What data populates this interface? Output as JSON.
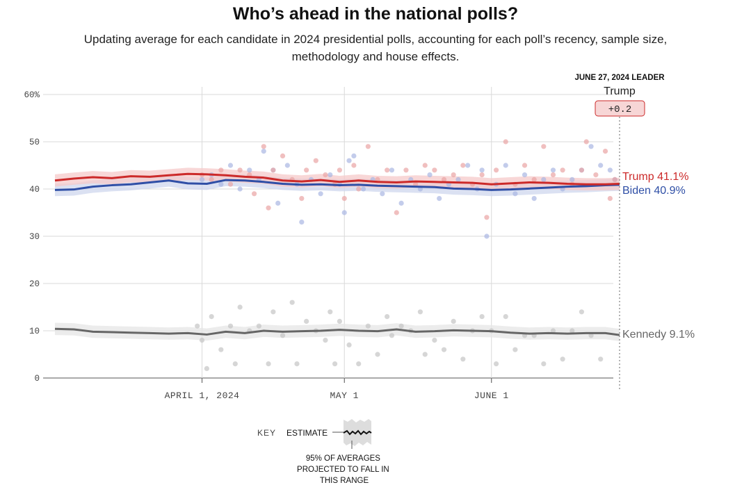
{
  "header": {
    "title": "Who’s ahead in the national polls?",
    "subtitle": "Updating average for each candidate in 2024 presidential polls, accounting for each poll’s recency, sample size, methodology and house effects."
  },
  "leader": {
    "label": "JUNE 27, 2024 LEADER",
    "name": "Trump",
    "margin": "+0.2"
  },
  "colors": {
    "trump": "#cc2a2a",
    "biden": "#2f4fa6",
    "kennedy": "#666666"
  },
  "key": {
    "label": "KEY",
    "estimate": "ESTIMATE",
    "range_note": "95% OF AVERAGES PROJECTED TO FALL IN THIS RANGE"
  },
  "chart_data": {
    "type": "line",
    "title": "Who’s ahead in the national polls?",
    "y_range": [
      0,
      60
    ],
    "y_ticks": [
      "60%",
      "50",
      "40",
      "30",
      "20",
      "10",
      "0"
    ],
    "y_tick_values": [
      60,
      50,
      40,
      30,
      20,
      10,
      0
    ],
    "x_range_days": [
      0,
      119
    ],
    "x_ticks": [
      {
        "label": "APRIL 1, 2024",
        "day": 31
      },
      {
        "label": "MAY 1",
        "day": 61
      },
      {
        "label": "JUNE 1",
        "day": 92
      }
    ],
    "end_labels": [
      {
        "series": "Trump",
        "text": "Trump 41.1%"
      },
      {
        "series": "Biden",
        "text": "Biden 40.9%"
      },
      {
        "series": "Kennedy",
        "text": "Kennedy 9.1%"
      }
    ],
    "series": [
      {
        "name": "Trump",
        "band": 1.3,
        "days": [
          0,
          4,
          8,
          12,
          16,
          20,
          24,
          28,
          32,
          36,
          40,
          44,
          48,
          52,
          56,
          60,
          64,
          68,
          72,
          76,
          80,
          84,
          88,
          92,
          96,
          100,
          104,
          108,
          112,
          116,
          119
        ],
        "values": [
          41.8,
          42.2,
          42.5,
          42.3,
          42.7,
          42.6,
          42.9,
          43.2,
          43.1,
          42.9,
          42.6,
          42.4,
          41.8,
          41.6,
          41.9,
          41.5,
          41.8,
          41.5,
          41.4,
          41.6,
          41.5,
          41.4,
          41.3,
          41.0,
          41.2,
          41.4,
          41.3,
          41.1,
          41.0,
          41.0,
          41.1
        ],
        "polls": [
          {
            "day": 31,
            "value": 43
          },
          {
            "day": 33,
            "value": 42
          },
          {
            "day": 35,
            "value": 44
          },
          {
            "day": 37,
            "value": 41
          },
          {
            "day": 39,
            "value": 44
          },
          {
            "day": 41,
            "value": 43
          },
          {
            "day": 42,
            "value": 39
          },
          {
            "day": 44,
            "value": 49
          },
          {
            "day": 45,
            "value": 36
          },
          {
            "day": 46,
            "value": 44
          },
          {
            "day": 48,
            "value": 47
          },
          {
            "day": 50,
            "value": 42
          },
          {
            "day": 52,
            "value": 38
          },
          {
            "day": 53,
            "value": 44
          },
          {
            "day": 55,
            "value": 46
          },
          {
            "day": 57,
            "value": 43
          },
          {
            "day": 59,
            "value": 41
          },
          {
            "day": 60,
            "value": 44
          },
          {
            "day": 61,
            "value": 38
          },
          {
            "day": 63,
            "value": 45
          },
          {
            "day": 64,
            "value": 40
          },
          {
            "day": 66,
            "value": 49
          },
          {
            "day": 68,
            "value": 42
          },
          {
            "day": 70,
            "value": 44
          },
          {
            "day": 72,
            "value": 35
          },
          {
            "day": 74,
            "value": 44
          },
          {
            "day": 76,
            "value": 41
          },
          {
            "day": 78,
            "value": 45
          },
          {
            "day": 80,
            "value": 44
          },
          {
            "day": 82,
            "value": 42
          },
          {
            "day": 84,
            "value": 43
          },
          {
            "day": 86,
            "value": 45
          },
          {
            "day": 88,
            "value": 41
          },
          {
            "day": 90,
            "value": 43
          },
          {
            "day": 91,
            "value": 34
          },
          {
            "day": 93,
            "value": 44
          },
          {
            "day": 95,
            "value": 50
          },
          {
            "day": 97,
            "value": 41
          },
          {
            "day": 99,
            "value": 45
          },
          {
            "day": 101,
            "value": 42
          },
          {
            "day": 103,
            "value": 49
          },
          {
            "day": 105,
            "value": 43
          },
          {
            "day": 107,
            "value": 44
          },
          {
            "day": 109,
            "value": 41
          },
          {
            "day": 111,
            "value": 44
          },
          {
            "day": 112,
            "value": 50
          },
          {
            "day": 114,
            "value": 43
          },
          {
            "day": 116,
            "value": 48
          },
          {
            "day": 117,
            "value": 38
          },
          {
            "day": 118,
            "value": 42
          }
        ]
      },
      {
        "name": "Biden",
        "band": 1.3,
        "days": [
          0,
          4,
          8,
          12,
          16,
          20,
          24,
          28,
          32,
          36,
          40,
          44,
          48,
          52,
          56,
          60,
          64,
          68,
          72,
          76,
          80,
          84,
          88,
          92,
          96,
          100,
          104,
          108,
          112,
          116,
          119
        ],
        "values": [
          39.8,
          39.9,
          40.5,
          40.8,
          41.0,
          41.4,
          41.8,
          41.2,
          41.1,
          41.9,
          41.8,
          41.5,
          41.1,
          40.9,
          41.0,
          40.8,
          40.9,
          40.7,
          40.6,
          40.5,
          40.4,
          40.1,
          40.0,
          39.8,
          39.9,
          40.1,
          40.3,
          40.5,
          40.6,
          40.8,
          40.9
        ],
        "polls": [
          {
            "day": 31,
            "value": 42
          },
          {
            "day": 33,
            "value": 43
          },
          {
            "day": 35,
            "value": 41
          },
          {
            "day": 37,
            "value": 45
          },
          {
            "day": 39,
            "value": 40
          },
          {
            "day": 41,
            "value": 44
          },
          {
            "day": 43,
            "value": 42
          },
          {
            "day": 44,
            "value": 48
          },
          {
            "day": 46,
            "value": 44
          },
          {
            "day": 47,
            "value": 37
          },
          {
            "day": 49,
            "value": 45
          },
          {
            "day": 51,
            "value": 41
          },
          {
            "day": 52,
            "value": 33
          },
          {
            "day": 54,
            "value": 42
          },
          {
            "day": 56,
            "value": 39
          },
          {
            "day": 58,
            "value": 43
          },
          {
            "day": 60,
            "value": 41
          },
          {
            "day": 61,
            "value": 35
          },
          {
            "day": 62,
            "value": 46
          },
          {
            "day": 63,
            "value": 47
          },
          {
            "day": 65,
            "value": 40
          },
          {
            "day": 67,
            "value": 42
          },
          {
            "day": 69,
            "value": 39
          },
          {
            "day": 71,
            "value": 44
          },
          {
            "day": 73,
            "value": 37
          },
          {
            "day": 75,
            "value": 42
          },
          {
            "day": 77,
            "value": 40
          },
          {
            "day": 79,
            "value": 43
          },
          {
            "day": 81,
            "value": 38
          },
          {
            "day": 83,
            "value": 41
          },
          {
            "day": 85,
            "value": 42
          },
          {
            "day": 87,
            "value": 45
          },
          {
            "day": 89,
            "value": 40
          },
          {
            "day": 90,
            "value": 44
          },
          {
            "day": 91,
            "value": 30
          },
          {
            "day": 93,
            "value": 41
          },
          {
            "day": 95,
            "value": 45
          },
          {
            "day": 97,
            "value": 39
          },
          {
            "day": 99,
            "value": 43
          },
          {
            "day": 101,
            "value": 38
          },
          {
            "day": 103,
            "value": 42
          },
          {
            "day": 105,
            "value": 44
          },
          {
            "day": 107,
            "value": 40
          },
          {
            "day": 109,
            "value": 42
          },
          {
            "day": 111,
            "value": 44
          },
          {
            "day": 113,
            "value": 49
          },
          {
            "day": 115,
            "value": 45
          },
          {
            "day": 117,
            "value": 44
          },
          {
            "day": 118,
            "value": 42
          }
        ]
      },
      {
        "name": "Kennedy",
        "band": 1.3,
        "days": [
          0,
          4,
          8,
          12,
          16,
          20,
          24,
          28,
          32,
          36,
          40,
          44,
          48,
          52,
          56,
          60,
          64,
          68,
          72,
          76,
          80,
          84,
          88,
          92,
          96,
          100,
          104,
          108,
          112,
          116,
          119
        ],
        "values": [
          10.4,
          10.3,
          9.8,
          9.7,
          9.6,
          9.5,
          9.4,
          9.5,
          9.2,
          9.8,
          9.5,
          10.0,
          9.8,
          9.9,
          10.0,
          10.2,
          10.0,
          9.9,
          10.3,
          9.8,
          9.9,
          10.1,
          10.0,
          9.9,
          9.6,
          9.4,
          9.5,
          9.4,
          9.5,
          9.5,
          9.1
        ],
        "polls": [
          {
            "day": 30,
            "value": 11
          },
          {
            "day": 31,
            "value": 8
          },
          {
            "day": 32,
            "value": 2
          },
          {
            "day": 33,
            "value": 13
          },
          {
            "day": 35,
            "value": 6
          },
          {
            "day": 37,
            "value": 11
          },
          {
            "day": 38,
            "value": 3
          },
          {
            "day": 39,
            "value": 15
          },
          {
            "day": 41,
            "value": 10
          },
          {
            "day": 43,
            "value": 11
          },
          {
            "day": 45,
            "value": 3
          },
          {
            "day": 46,
            "value": 14
          },
          {
            "day": 48,
            "value": 9
          },
          {
            "day": 50,
            "value": 16
          },
          {
            "day": 51,
            "value": 3
          },
          {
            "day": 53,
            "value": 12
          },
          {
            "day": 55,
            "value": 10
          },
          {
            "day": 57,
            "value": 8
          },
          {
            "day": 58,
            "value": 14
          },
          {
            "day": 59,
            "value": 3
          },
          {
            "day": 60,
            "value": 12
          },
          {
            "day": 62,
            "value": 7
          },
          {
            "day": 64,
            "value": 3
          },
          {
            "day": 66,
            "value": 11
          },
          {
            "day": 68,
            "value": 5
          },
          {
            "day": 70,
            "value": 13
          },
          {
            "day": 71,
            "value": 9
          },
          {
            "day": 73,
            "value": 11
          },
          {
            "day": 75,
            "value": 10
          },
          {
            "day": 77,
            "value": 14
          },
          {
            "day": 78,
            "value": 5
          },
          {
            "day": 80,
            "value": 8
          },
          {
            "day": 82,
            "value": 6
          },
          {
            "day": 84,
            "value": 12
          },
          {
            "day": 86,
            "value": 4
          },
          {
            "day": 88,
            "value": 10
          },
          {
            "day": 90,
            "value": 13
          },
          {
            "day": 92,
            "value": 10
          },
          {
            "day": 93,
            "value": 3
          },
          {
            "day": 95,
            "value": 13
          },
          {
            "day": 97,
            "value": 6
          },
          {
            "day": 99,
            "value": 9
          },
          {
            "day": 101,
            "value": 9
          },
          {
            "day": 103,
            "value": 3
          },
          {
            "day": 105,
            "value": 10
          },
          {
            "day": 107,
            "value": 4
          },
          {
            "day": 109,
            "value": 10
          },
          {
            "day": 111,
            "value": 14
          },
          {
            "day": 113,
            "value": 9
          },
          {
            "day": 115,
            "value": 4
          }
        ]
      }
    ]
  }
}
